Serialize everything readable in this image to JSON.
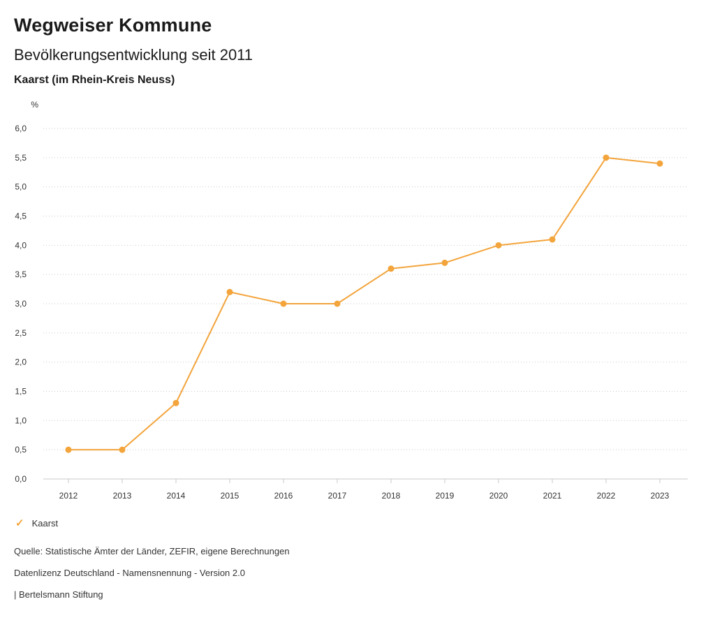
{
  "header": {
    "app_title": "Wegweiser Kommune"
  },
  "chart_data": {
    "type": "line",
    "title": "Bevölkerungsentwicklung seit 2011",
    "region": "Kaarst (im Rhein-Kreis Neuss)",
    "unit": "%",
    "xlabel": "",
    "ylabel": "%",
    "x": [
      2012,
      2013,
      2014,
      2015,
      2016,
      2017,
      2018,
      2019,
      2020,
      2021,
      2022,
      2023
    ],
    "series": [
      {
        "name": "Kaarst",
        "color": "#f3a43b",
        "values": [
          0.5,
          0.5,
          1.3,
          3.2,
          3.0,
          3.0,
          3.6,
          3.7,
          4.0,
          4.1,
          5.5,
          5.4
        ]
      }
    ],
    "ylim": [
      0.0,
      6.0
    ],
    "ytick_step": 0.5,
    "grid": "horizontal-dotted",
    "legend_position": "bottom-left"
  },
  "legend": {
    "check_icon": "✓"
  },
  "footer": {
    "source": "Quelle: Statistische Ämter der Länder, ZEFIR, eigene Berechnungen",
    "license": "Datenlizenz Deutschland - Namensnennung - Version 2.0",
    "attribution": "| Bertelsmann Stiftung"
  }
}
